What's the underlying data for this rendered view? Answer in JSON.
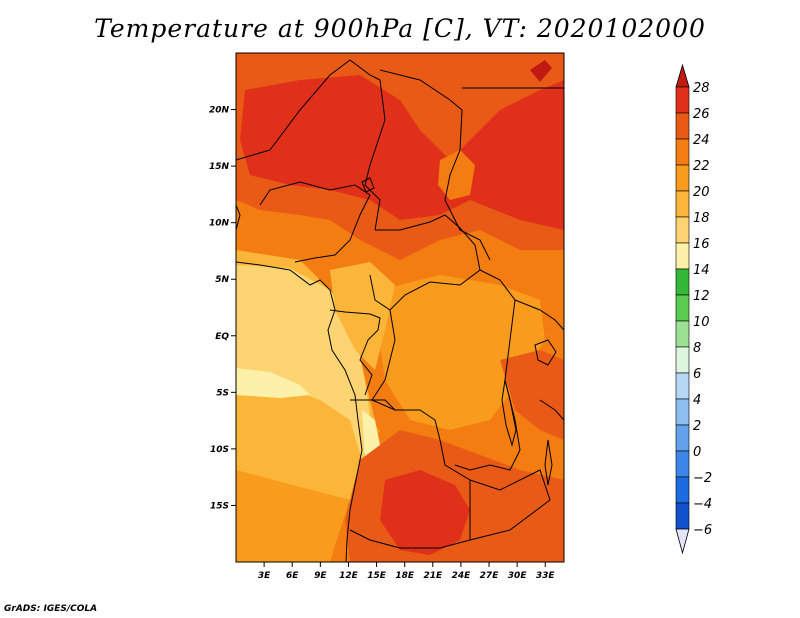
{
  "title": "Temperature at 900hPa [C], VT: 2020102000",
  "credit": "GrADS: IGES/COLA",
  "map": {
    "lon_range": [
      0,
      35
    ],
    "lat_range": [
      -20,
      25
    ],
    "lat_ticks": [
      {
        "lat": 20,
        "label": "20N"
      },
      {
        "lat": 15,
        "label": "15N"
      },
      {
        "lat": 10,
        "label": "10N"
      },
      {
        "lat": 5,
        "label": "5N"
      },
      {
        "lat": 0,
        "label": "EQ"
      },
      {
        "lat": -5,
        "label": "5S"
      },
      {
        "lat": -10,
        "label": "10S"
      },
      {
        "lat": -15,
        "label": "15S"
      }
    ],
    "lon_ticks": [
      {
        "lon": 3,
        "label": "3E"
      },
      {
        "lon": 6,
        "label": "6E"
      },
      {
        "lon": 9,
        "label": "9E"
      },
      {
        "lon": 12,
        "label": "12E"
      },
      {
        "lon": 15,
        "label": "15E"
      },
      {
        "lon": 18,
        "label": "18E"
      },
      {
        "lon": 21,
        "label": "21E"
      },
      {
        "lon": 24,
        "label": "24E"
      },
      {
        "lon": 27,
        "label": "27E"
      },
      {
        "lon": 30,
        "label": "30E"
      },
      {
        "lon": 33,
        "label": "33E"
      }
    ]
  },
  "colorbar": {
    "levels": [
      28,
      26,
      24,
      22,
      20,
      18,
      16,
      14,
      12,
      10,
      8,
      6,
      4,
      2,
      0,
      -2,
      -4,
      -6
    ],
    "labels": [
      "28",
      "26",
      "24",
      "22",
      "20",
      "18",
      "16",
      "14",
      "12",
      "10",
      "8",
      "6",
      "4",
      "2",
      "0",
      "−2",
      "−4",
      "−6"
    ],
    "colors": [
      "#e0301a",
      "#e85a16",
      "#f47d12",
      "#f99b1c",
      "#fbb63a",
      "#fcd472",
      "#fdf0a8",
      "#33b838",
      "#5acd50",
      "#9ce294",
      "#def5de",
      "#b5d8f5",
      "#8cbef0",
      "#63a2ec",
      "#3b86e8",
      "#1e6ae0",
      "#1052cc",
      "#0f3aa8",
      "#0a1f7a"
    ],
    "top_color": "#c01a12",
    "bottom_color": "#e4e4f8"
  }
}
